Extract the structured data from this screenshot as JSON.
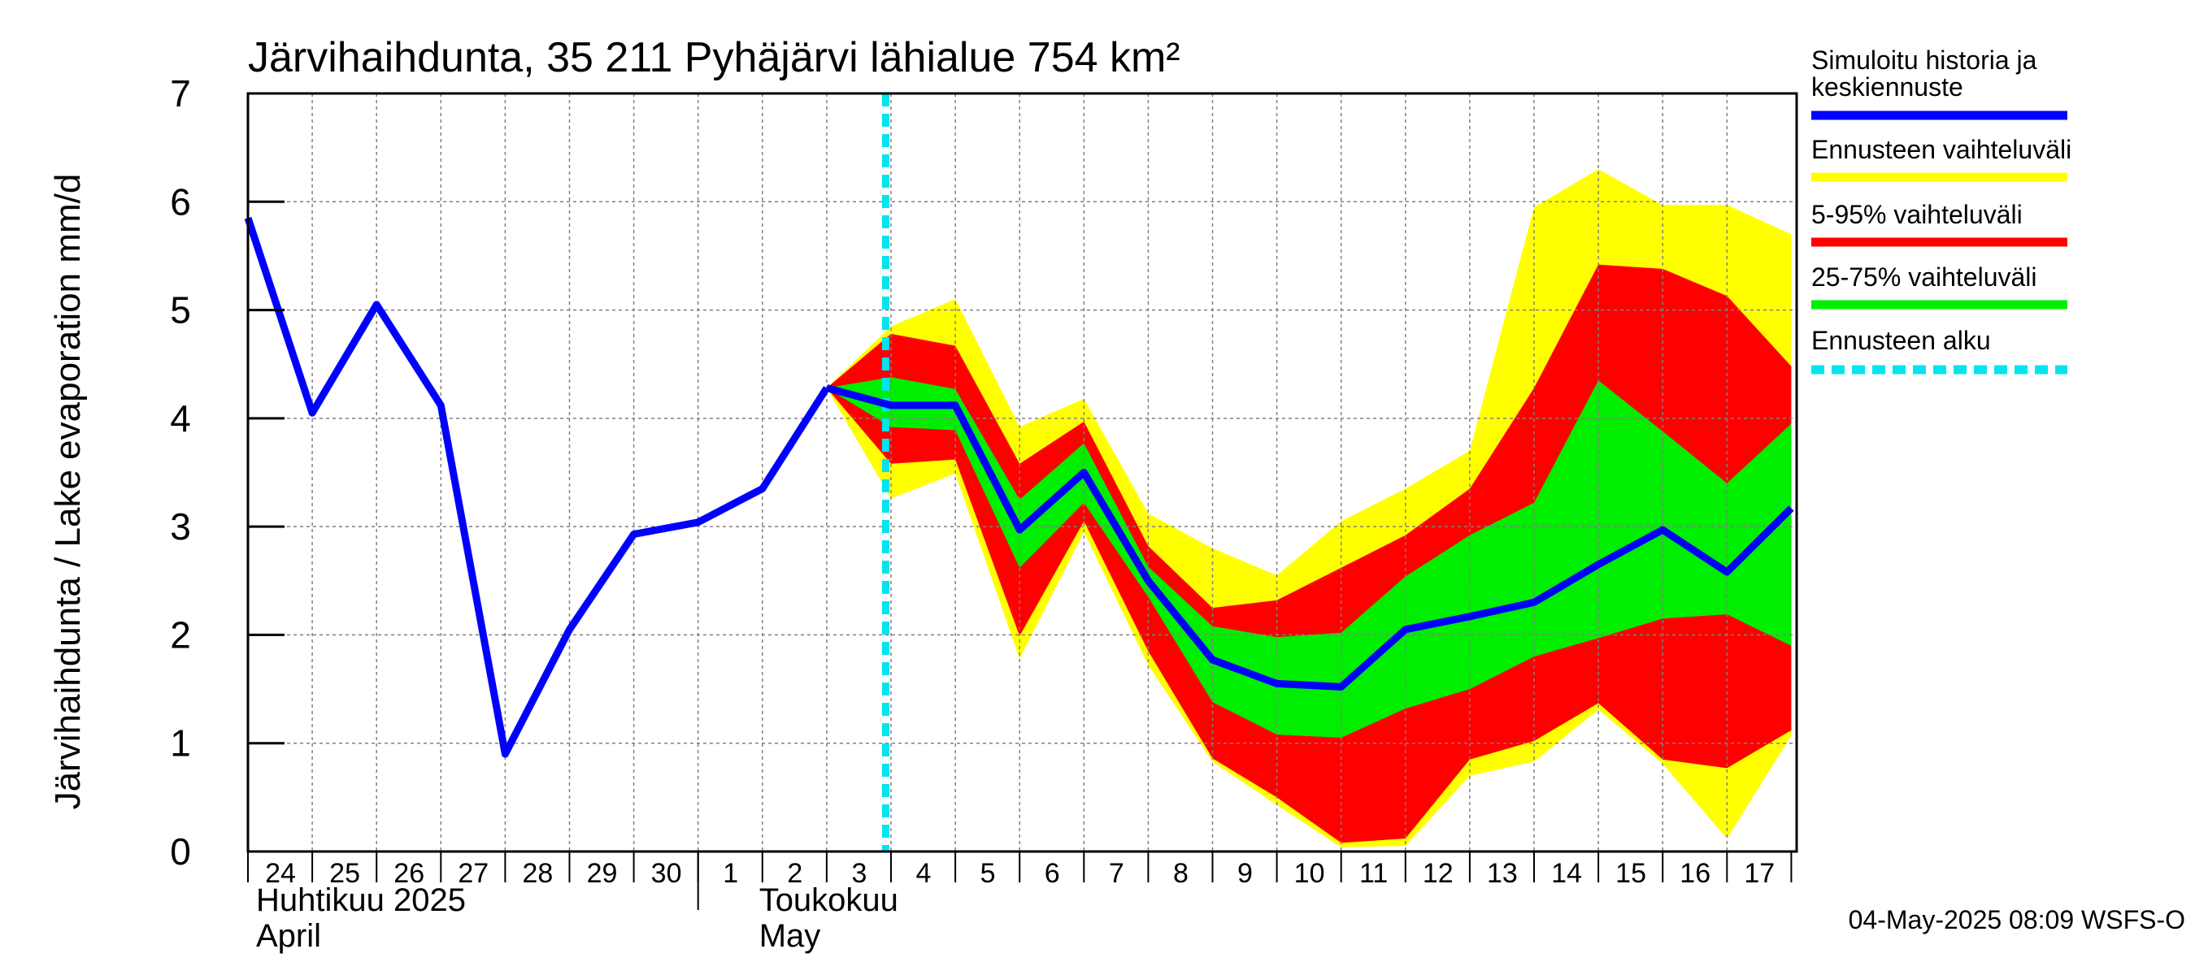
{
  "chart_data": {
    "type": "area",
    "title": "Järvihaihdunta, 35 211 Pyhäjärvi lähialue 754 km²",
    "ylabel": "Järvihaihdunta / Lake evaporation   mm/d",
    "ylim": [
      0,
      7
    ],
    "yticks": [
      0,
      1,
      2,
      3,
      4,
      5,
      6,
      7
    ],
    "x_start": "2025-04-24",
    "x_end": "2025-05-17",
    "day_labels": [
      "24",
      "25",
      "26",
      "27",
      "28",
      "29",
      "30",
      "1",
      "2",
      "3",
      "4",
      "5",
      "6",
      "7",
      "8",
      "9",
      "10",
      "11",
      "12",
      "13",
      "14",
      "15",
      "16",
      "17"
    ],
    "month_labels": [
      {
        "fi": "Huhtikuu  2025",
        "en": "April"
      },
      {
        "fi": "Toukokuu",
        "en": "May"
      }
    ],
    "forecast_start": "2025-05-03T22:00",
    "grid": true,
    "history_x": [
      "2025-04-24",
      "2025-04-25",
      "2025-04-26",
      "2025-04-27",
      "2025-04-28",
      "2025-04-29",
      "2025-04-30",
      "2025-05-01",
      "2025-05-02",
      "2025-05-03"
    ],
    "history": [
      5.85,
      4.05,
      5.05,
      4.12,
      0.9,
      2.05,
      2.93,
      3.04,
      3.35,
      4.28
    ],
    "forecast_x": [
      "2025-05-03",
      "2025-05-04",
      "2025-05-05",
      "2025-05-06",
      "2025-05-07",
      "2025-05-08",
      "2025-05-09",
      "2025-05-10",
      "2025-05-11",
      "2025-05-12",
      "2025-05-13",
      "2025-05-14",
      "2025-05-15",
      "2025-05-16",
      "2025-05-17",
      "2025-05-18"
    ],
    "series": [
      {
        "name": "Ennusteen vaihteluväli",
        "color": "#ffff00",
        "upper": [
          4.28,
          4.85,
          5.1,
          3.92,
          4.18,
          3.12,
          2.8,
          2.55,
          3.05,
          3.35,
          3.7,
          5.95,
          6.3,
          5.97,
          5.97,
          5.7
        ],
        "lower": [
          4.28,
          3.26,
          3.49,
          1.78,
          2.95,
          1.72,
          0.83,
          0.43,
          0.04,
          0.05,
          0.7,
          0.83,
          1.31,
          0.81,
          0.12,
          1.07
        ]
      },
      {
        "name": "5-95% vaihteluväli",
        "color": "#ff0000",
        "upper": [
          4.28,
          4.78,
          4.67,
          3.58,
          3.97,
          2.82,
          2.25,
          2.32,
          2.62,
          2.92,
          3.35,
          4.28,
          5.42,
          5.38,
          5.13,
          4.48
        ],
        "lower": [
          4.28,
          3.58,
          3.62,
          1.99,
          3.05,
          1.85,
          0.86,
          0.5,
          0.08,
          0.12,
          0.85,
          1.02,
          1.37,
          0.85,
          0.77,
          1.12
        ]
      },
      {
        "name": "25-75% vaihteluväli",
        "color": "#00ee00",
        "upper": [
          4.28,
          4.38,
          4.27,
          3.25,
          3.77,
          2.63,
          2.08,
          1.98,
          2.02,
          2.54,
          2.92,
          3.22,
          4.35,
          3.88,
          3.4,
          3.95
        ],
        "lower": [
          4.28,
          3.92,
          3.89,
          2.62,
          3.22,
          2.35,
          1.38,
          1.08,
          1.05,
          1.32,
          1.5,
          1.8,
          1.97,
          2.15,
          2.19,
          1.9
        ]
      },
      {
        "name": "Simuloitu historia ja keskiennuste",
        "color": "#0000ff",
        "values": [
          4.28,
          4.12,
          4.12,
          2.97,
          3.5,
          2.5,
          1.77,
          1.55,
          1.52,
          2.05,
          2.17,
          2.3,
          2.65,
          2.97,
          2.58,
          3.17
        ]
      }
    ]
  },
  "legend": [
    {
      "label": "Simuloitu historia ja keskiennuste",
      "color": "#0000ff",
      "style": "solid"
    },
    {
      "label": "Ennusteen vaihteluväli",
      "color": "#ffff00",
      "style": "solid"
    },
    {
      "label": "5-95% vaihteluväli",
      "color": "#ff0000",
      "style": "solid"
    },
    {
      "label": "25-75% vaihteluväli",
      "color": "#00ee00",
      "style": "solid"
    },
    {
      "label": "Ennusteen alku",
      "color": "#00e5ee",
      "style": "dashed"
    }
  ],
  "footer": "04-May-2025 08:09 WSFS-O"
}
